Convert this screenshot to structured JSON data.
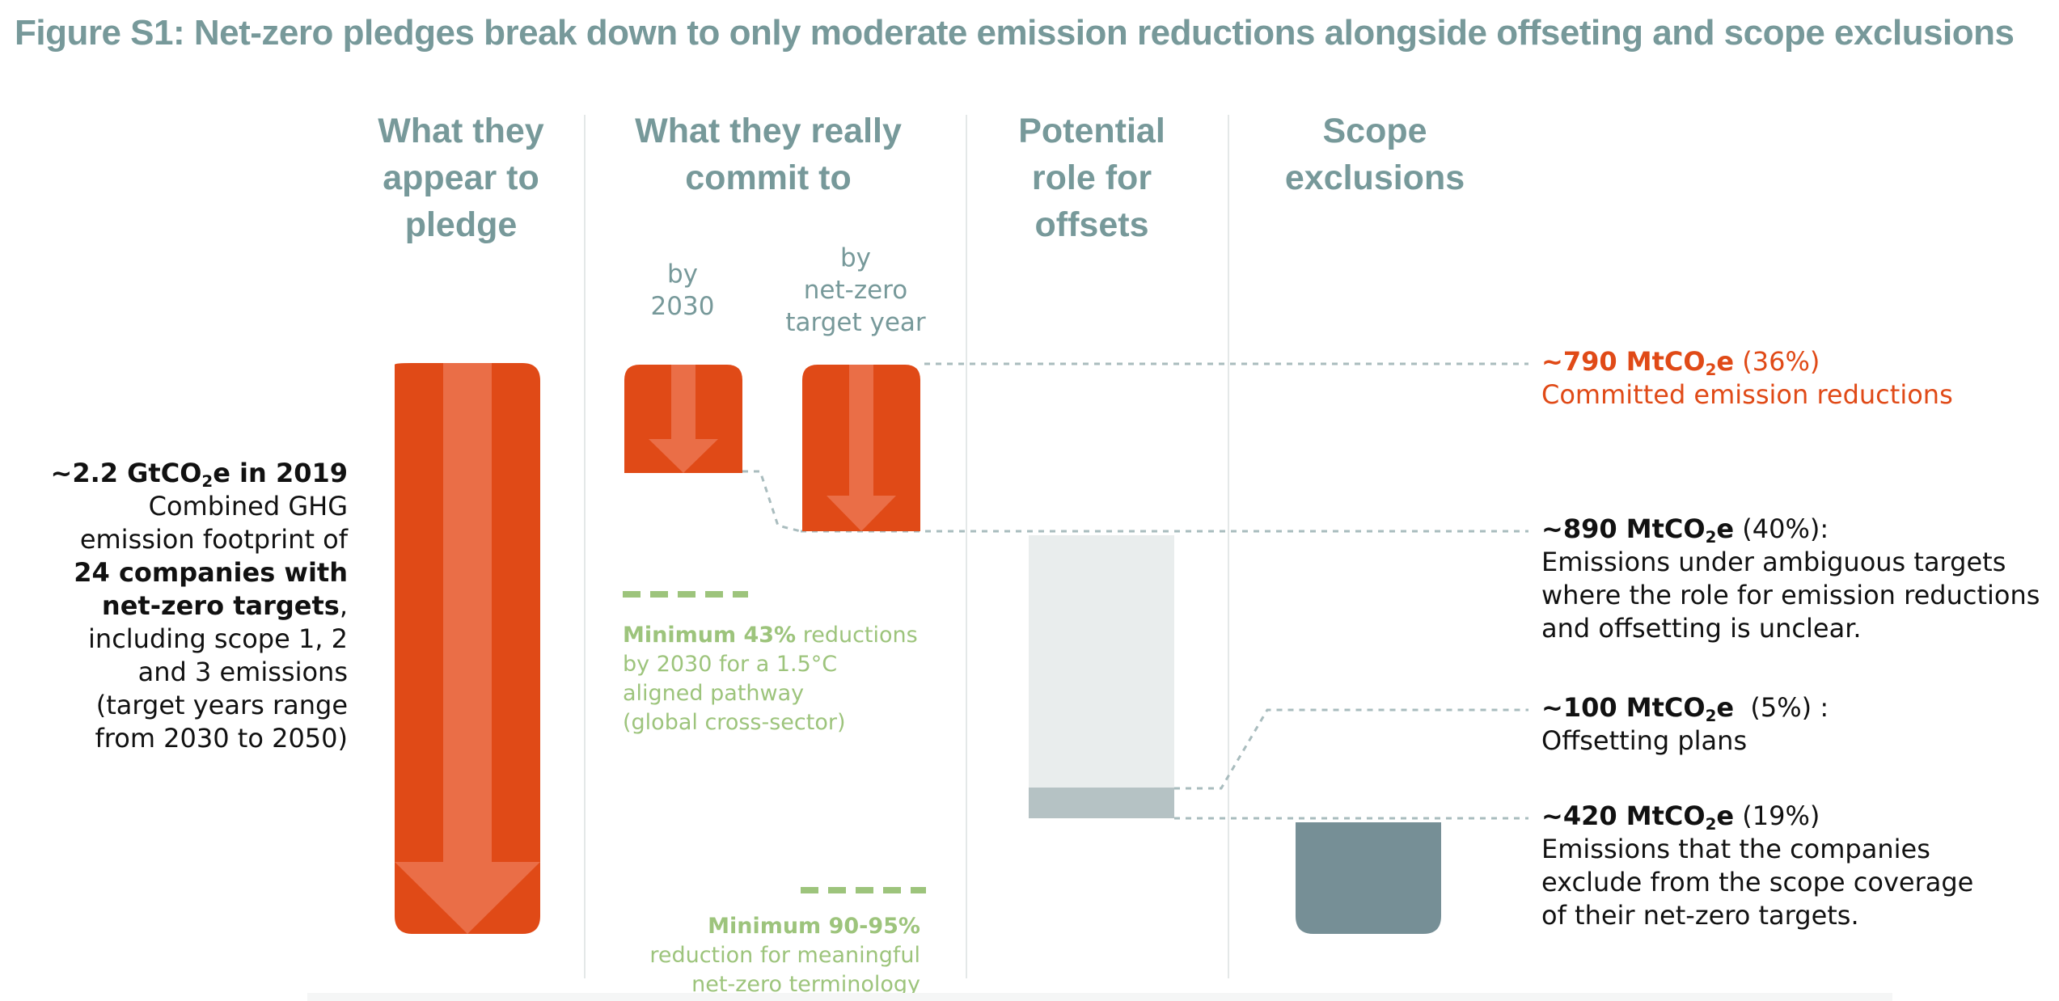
{
  "title": "Figure S1: Net-zero pledges break down to only moderate emission reductions alongside offseting and scope exclusions",
  "columns": [
    {
      "lines": [
        "What they",
        "appear to",
        "pledge"
      ]
    },
    {
      "lines": [
        "What they really",
        "commit to"
      ]
    },
    {
      "lines": [
        "Potential",
        "role for",
        "offsets"
      ]
    },
    {
      "lines": [
        "Scope",
        "exclusions"
      ]
    }
  ],
  "subheads": {
    "by_2030": [
      "by",
      "2030"
    ],
    "by_net_zero": [
      "by",
      "net-zero",
      "target year"
    ]
  },
  "left_annotation": {
    "headline_pre": "~2.2 GtCO",
    "headline_sub": "2",
    "headline_post": "e in 2019",
    "line1": "Combined GHG",
    "line2": "emission footprint of",
    "line3_bold": "24 companies with",
    "line4_bold": "net-zero targets",
    "line4_rest": ",",
    "line5": "including scope 1, 2",
    "line6": "and 3 emissions",
    "line7": "(target years range",
    "line8": "from 2030 to 2050)"
  },
  "right_annotations": [
    {
      "id": "committed",
      "pre": "~790 MtCO",
      "sub": "2",
      "post": "e",
      "pct": " (36%)",
      "lines": [
        "Committed emission reductions"
      ]
    },
    {
      "id": "ambiguous",
      "pre": "~890 MtCO",
      "sub": "2",
      "post": "e",
      "pct": " (40%):",
      "lines": [
        "Emissions under ambiguous targets",
        "where the role for emission reductions",
        "and offsetting is unclear."
      ]
    },
    {
      "id": "offsetting",
      "pre": "~100 MtCO",
      "sub": "2",
      "post": "e",
      "pct": "  (5%) :",
      "lines": [
        "Offsetting plans"
      ]
    },
    {
      "id": "exclusions",
      "pre": "~420 MtCO",
      "sub": "2",
      "post": "e",
      "pct": " (19%)",
      "lines": [
        "Emissions that the companies",
        "exclude from the scope coverage",
        "of their net-zero targets."
      ]
    }
  ],
  "benchmarks": {
    "b2030": {
      "bold": "Minimum 43%",
      "rest": " reductions",
      "lines": [
        "by 2030 for a 1.5°C",
        "aligned pathway",
        "(global cross-sector)"
      ]
    },
    "bnetzero": {
      "bold": "Minimum 90-95%",
      "lines": [
        "reduction for meaningful",
        "net-zero terminology"
      ]
    }
  },
  "colors": {
    "orange": "#e04a17",
    "orange_light": "#ea6e47",
    "grey_light": "#e9eded",
    "grey_mid": "#b5c2c4",
    "grey_dark": "#768f96",
    "green": "#9dc47c",
    "teal_text": "#77999a",
    "dotted": "#a9bcbe"
  },
  "chart_data": {
    "type": "bar",
    "unit": "MtCO2e",
    "total": 2200,
    "segments": [
      {
        "name": "Committed emission reductions",
        "value": 790,
        "share": 0.36
      },
      {
        "name": "Emissions under ambiguous targets",
        "value": 890,
        "share": 0.4
      },
      {
        "name": "Offsetting plans",
        "value": 100,
        "share": 0.05
      },
      {
        "name": "Scope exclusions",
        "value": 420,
        "share": 0.19
      }
    ],
    "benchmarks": [
      {
        "label": "Minimum 43% reductions by 2030 for a 1.5°C aligned pathway",
        "share": 0.43
      },
      {
        "label": "Minimum 90-95% reduction for meaningful net-zero terminology",
        "share": [
          0.9,
          0.95
        ]
      }
    ]
  }
}
